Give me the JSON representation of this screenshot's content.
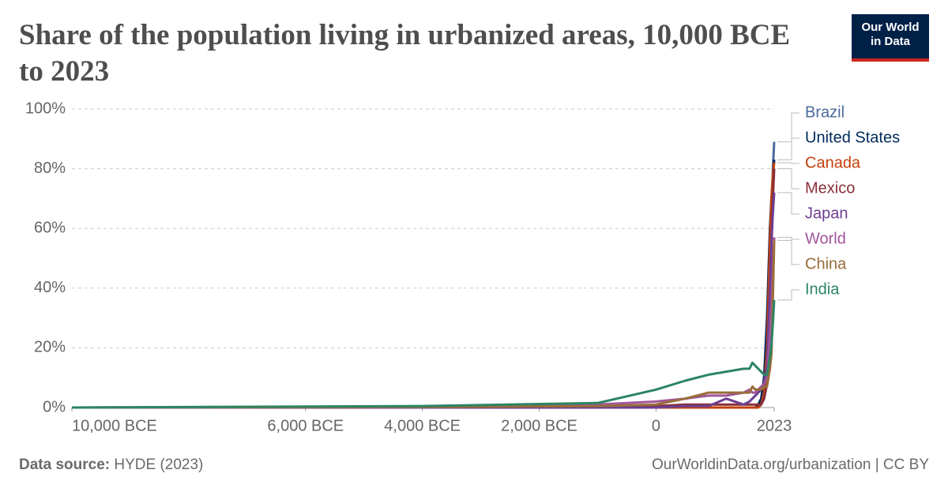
{
  "chart_data": {
    "type": "line",
    "title": "Share of the population living in urbanized areas, 10,000 BCE to 2023",
    "logo": [
      "Our World",
      "in Data"
    ],
    "source_label": "Data source:",
    "source": "HYDE (2023)",
    "footer": "OurWorldinData.org/urbanization | CC BY",
    "x": [
      -10000,
      -4000,
      -1000,
      0,
      500,
      900,
      1200,
      1500,
      1600,
      1650,
      1700,
      1750,
      1800,
      1850,
      1900,
      1950,
      1975,
      2000,
      2023
    ],
    "xlim": [
      -10000,
      2023
    ],
    "xticks": [
      {
        "value": -10000,
        "label": "10,000 BCE"
      },
      {
        "value": -6000,
        "label": "6,000 BCE"
      },
      {
        "value": -4000,
        "label": "4,000 BCE"
      },
      {
        "value": -2000,
        "label": "2,000 BCE"
      },
      0,
      2023
    ],
    "ylim": [
      0,
      100
    ],
    "yticks": [
      {
        "value": 0,
        "label": "0%"
      },
      {
        "value": 20,
        "label": "20%"
      },
      {
        "value": 40,
        "label": "40%"
      },
      {
        "value": 60,
        "label": "60%"
      },
      {
        "value": 80,
        "label": "80%"
      },
      {
        "value": 100,
        "label": "100%"
      }
    ],
    "grid": true,
    "series": [
      {
        "name": "Brazil",
        "color": "#4c6a9c",
        "values": [
          0,
          0,
          0,
          0,
          0,
          0,
          0,
          0,
          0,
          0,
          0,
          0,
          1,
          3,
          8,
          35,
          60,
          80,
          89
        ]
      },
      {
        "name": "United States",
        "color": "#00295b",
        "values": [
          0,
          0,
          0,
          0,
          0,
          0,
          0,
          0,
          0,
          0,
          0,
          1,
          3,
          10,
          30,
          60,
          70,
          77,
          83
        ]
      },
      {
        "name": "Canada",
        "color": "#c4400c",
        "values": [
          0,
          0,
          0,
          0,
          0,
          0,
          0,
          0,
          0,
          0,
          0,
          0,
          1,
          5,
          20,
          55,
          70,
          78,
          82
        ]
      },
      {
        "name": "Mexico",
        "color": "#883039",
        "values": [
          0,
          0,
          0,
          0.5,
          1,
          1,
          1,
          1,
          1,
          1,
          1,
          1,
          1,
          3,
          8,
          35,
          55,
          70,
          80
        ]
      },
      {
        "name": "Japan",
        "color": "#6d3e91",
        "values": [
          0,
          0,
          0,
          0,
          0.5,
          0.5,
          3,
          1,
          2,
          3,
          4,
          5,
          6,
          8,
          14,
          40,
          55,
          65,
          72
        ]
      },
      {
        "name": "World",
        "color": "#a2559c",
        "values": [
          0,
          0.2,
          1,
          2,
          3,
          4,
          4,
          5,
          6,
          5,
          5,
          6,
          7,
          8,
          10,
          25,
          35,
          46,
          57
        ]
      },
      {
        "name": "China",
        "color": "#996d39",
        "values": [
          0,
          0.2,
          0.5,
          1,
          3,
          5,
          5,
          5,
          5,
          7,
          6,
          6,
          6,
          7,
          7,
          13,
          18,
          36,
          56
        ]
      },
      {
        "name": "India",
        "color": "#2c8465",
        "values": [
          0,
          0.5,
          1.5,
          6,
          9,
          11,
          12,
          13,
          13,
          15,
          14,
          13,
          12,
          11,
          11,
          17,
          21,
          28,
          36
        ]
      }
    ]
  }
}
